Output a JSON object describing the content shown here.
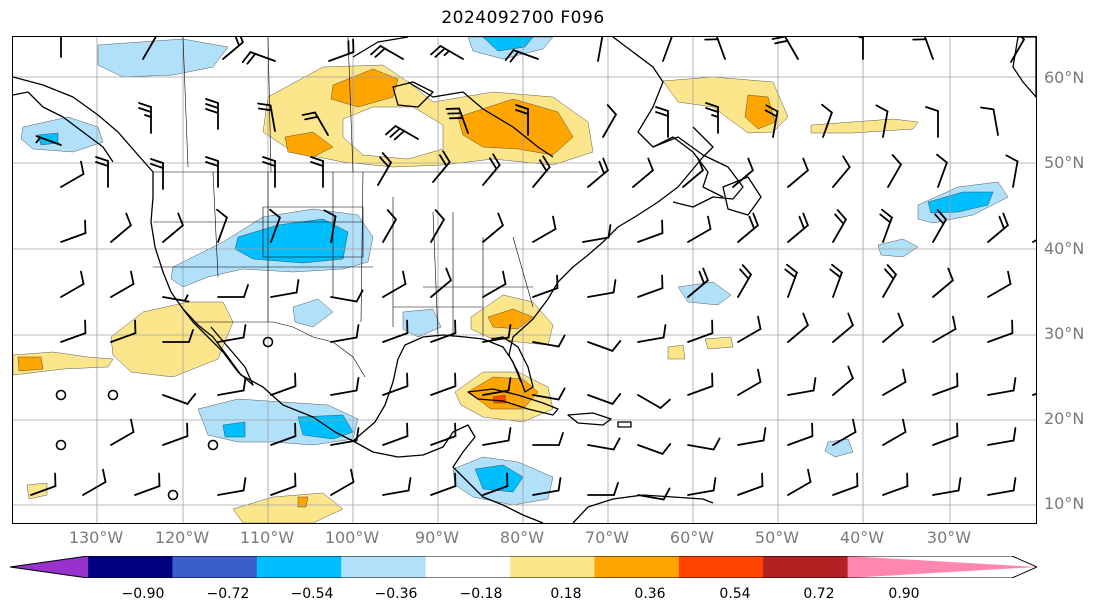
{
  "title": "2024092700 F096",
  "lat_labels": [
    "60°N",
    "50°N",
    "40°N",
    "30°N",
    "20°N",
    "10°N"
  ],
  "lon_labels": [
    "130°W",
    "120°W",
    "110°W",
    "100°W",
    "90°W",
    "80°W",
    "70°W",
    "60°W",
    "50°W",
    "40°W",
    "30°W"
  ],
  "colorbar": {
    "ticks": [
      "−0.90",
      "−0.72",
      "−0.54",
      "−0.36",
      "−0.18",
      "0.18",
      "0.36",
      "0.54",
      "0.72",
      "0.90"
    ],
    "colors": [
      "#9932cc",
      "#000080",
      "#3a5fcd",
      "#00bfff",
      "#b0e0fa",
      "#ffffff",
      "#fce68c",
      "#ffa500",
      "#ff4500",
      "#b22222",
      "#ff86b0"
    ]
  },
  "map": {
    "land_color": "#ffffff",
    "grid_color": "#a0a0a0",
    "coast_color": "#000000",
    "levels": [
      "−0.90",
      "−0.72",
      "−0.54",
      "−0.36",
      "−0.18",
      "0.18",
      "0.36",
      "0.54",
      "0.72",
      "0.90"
    ]
  }
}
